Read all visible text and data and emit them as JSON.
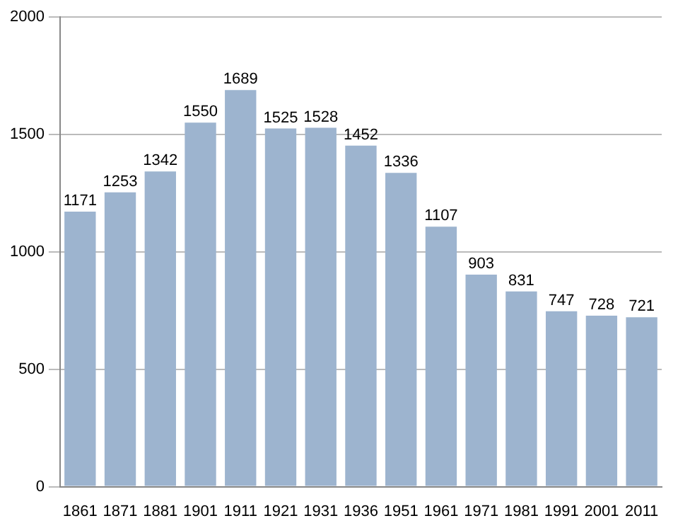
{
  "chart_data": {
    "type": "bar",
    "categories": [
      "1861",
      "1871",
      "1881",
      "1901",
      "1911",
      "1921",
      "1931",
      "1936",
      "1951",
      "1961",
      "1971",
      "1981",
      "1991",
      "2001",
      "2011"
    ],
    "values": [
      1171,
      1253,
      1342,
      1550,
      1689,
      1525,
      1528,
      1452,
      1336,
      1107,
      903,
      831,
      747,
      728,
      721
    ],
    "color": "#9db4cf",
    "ylim": [
      0,
      2000
    ],
    "yticks": [
      0,
      500,
      1000,
      1500,
      2000
    ],
    "grid": "y",
    "data_labels": true
  }
}
